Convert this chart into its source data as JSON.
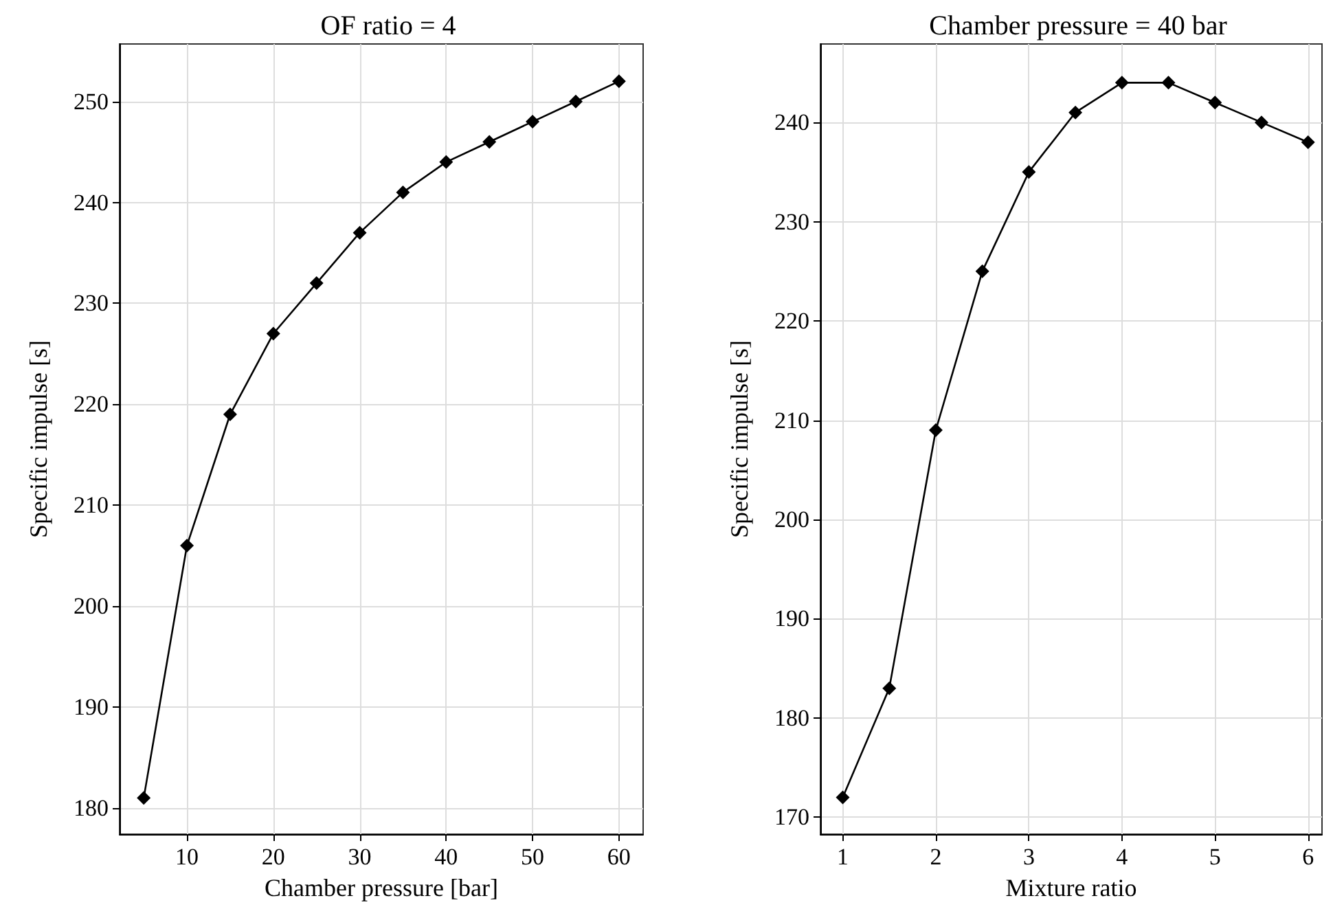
{
  "chart_data": [
    {
      "type": "line",
      "title": "OF ratio = 4",
      "xlabel": "Chamber pressure [bar]",
      "ylabel": "Specific impulse [s]",
      "x": [
        5,
        10,
        15,
        20,
        25,
        30,
        35,
        40,
        45,
        50,
        55,
        60
      ],
      "series": [
        {
          "color": "#000000",
          "values": [
            181,
            206,
            219,
            227,
            232,
            237,
            241,
            244,
            246,
            248,
            250,
            252
          ]
        }
      ],
      "xlim": [
        2.2,
        62.8
      ],
      "xticks": [
        10,
        20,
        30,
        40,
        50,
        60
      ],
      "ylim": [
        177.4,
        255.7
      ],
      "yticks": [
        180,
        190,
        200,
        210,
        220,
        230,
        240,
        250
      ],
      "grid": true,
      "marker": "diamond",
      "line_style": "solid"
    },
    {
      "type": "line",
      "title": "Chamber pressure = 40 bar",
      "xlabel": "Mixture ratio",
      "ylabel": "Specific impulse [s]",
      "x": [
        1,
        1.5,
        2,
        2.5,
        3,
        3.5,
        4,
        4.5,
        5,
        5.5,
        6
      ],
      "series": [
        {
          "color": "#000000",
          "values": [
            172,
            183,
            209,
            225,
            235,
            241,
            244,
            244,
            242,
            240,
            238
          ]
        }
      ],
      "xlim": [
        0.76,
        6.15
      ],
      "xticks": [
        1,
        2,
        3,
        4,
        5,
        6
      ],
      "ylim": [
        168.3,
        247.9
      ],
      "yticks": [
        170,
        180,
        190,
        200,
        210,
        220,
        230,
        240
      ],
      "grid": true,
      "marker": "diamond",
      "line_style": "solid"
    }
  ]
}
